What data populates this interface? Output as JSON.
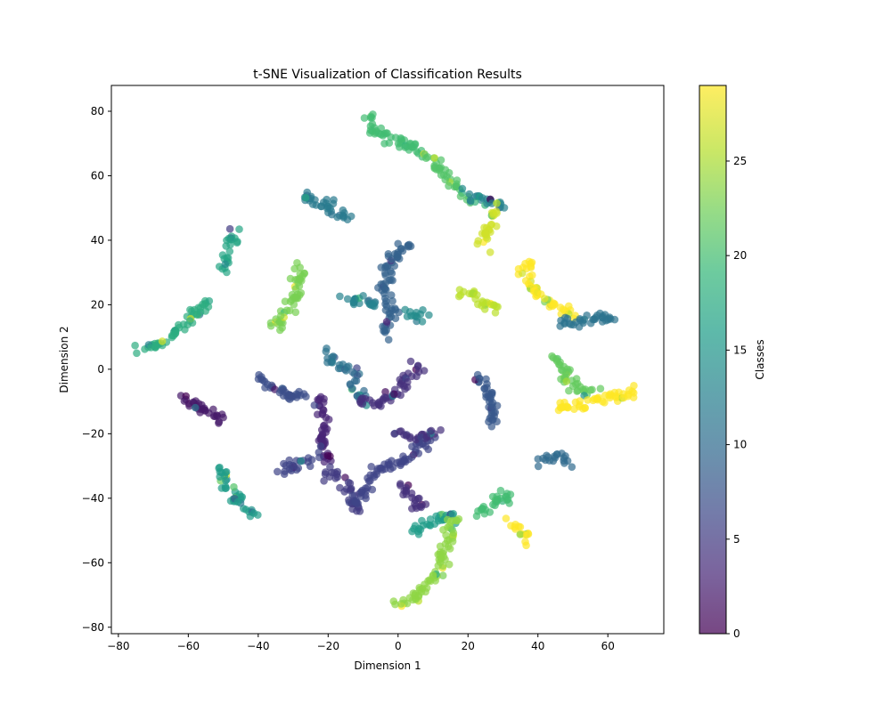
{
  "chart_data": {
    "type": "scatter",
    "title": "t-SNE Visualization of Classification Results",
    "xlabel": "Dimension 1",
    "ylabel": "Dimension 2",
    "xlim": [
      -82,
      76
    ],
    "ylim": [
      -82,
      88
    ],
    "xticks": [
      -80,
      -60,
      -40,
      -20,
      0,
      20,
      40,
      60
    ],
    "yticks": [
      -80,
      -60,
      -40,
      -20,
      0,
      20,
      40,
      60,
      80
    ],
    "grid": false,
    "colormap": "viridis",
    "point_alpha": 0.7,
    "colorbar": {
      "label": "Classes",
      "range": [
        0,
        29
      ],
      "ticks": [
        0,
        5,
        10,
        15,
        20,
        25
      ]
    },
    "clusters": [
      {
        "class": 2,
        "path": [
          [
            -62,
            -8
          ],
          [
            -58,
            -11
          ],
          [
            -54,
            -14
          ],
          [
            -50,
            -15
          ]
        ]
      },
      {
        "class": 16,
        "path": [
          [
            -51,
            -30
          ],
          [
            -49,
            -36
          ],
          [
            -46,
            -41
          ],
          [
            -42,
            -45
          ]
        ]
      },
      {
        "class": 18,
        "path": [
          [
            -74,
            6
          ],
          [
            -68,
            8
          ],
          [
            -62,
            13
          ],
          [
            -58,
            18
          ],
          [
            -54,
            21
          ]
        ]
      },
      {
        "class": 17,
        "path": [
          [
            -50,
            31
          ],
          [
            -49,
            36
          ],
          [
            -47,
            42
          ]
        ]
      },
      {
        "class": 23,
        "path": [
          [
            -37,
            12
          ],
          [
            -33,
            16
          ],
          [
            -29,
            23
          ],
          [
            -28,
            32
          ]
        ]
      },
      {
        "class": 7,
        "path": [
          [
            -40,
            -3
          ],
          [
            -36,
            -6
          ],
          [
            -30,
            -9
          ],
          [
            -26,
            -8
          ]
        ]
      },
      {
        "class": 3,
        "path": [
          [
            -22,
            -9
          ],
          [
            -21,
            -16
          ],
          [
            -22,
            -23
          ],
          [
            -20,
            -30
          ]
        ]
      },
      {
        "class": 6,
        "path": [
          [
            -34,
            -32
          ],
          [
            -28,
            -29
          ],
          [
            -24,
            -28
          ]
        ]
      },
      {
        "class": 5,
        "path": [
          [
            -20,
            -32
          ],
          [
            -16,
            -35
          ],
          [
            -13,
            -39
          ],
          [
            -12,
            -44
          ]
        ]
      },
      {
        "class": 6,
        "path": [
          [
            -12,
            -42
          ],
          [
            -8,
            -34
          ],
          [
            -4,
            -30
          ],
          [
            2,
            -28
          ],
          [
            6,
            -24
          ],
          [
            10,
            -20
          ]
        ]
      },
      {
        "class": 11,
        "path": [
          [
            -20,
            5
          ],
          [
            -18,
            2
          ],
          [
            -15,
            0
          ],
          [
            -12,
            -1
          ]
        ]
      },
      {
        "class": 10,
        "path": [
          [
            -13,
            -4
          ],
          [
            -12,
            -7
          ],
          [
            -10,
            -9
          ]
        ]
      },
      {
        "class": 4,
        "path": [
          [
            -12,
            -10
          ],
          [
            -6,
            -11
          ],
          [
            -2,
            -8
          ],
          [
            2,
            -4
          ],
          [
            6,
            1
          ]
        ]
      },
      {
        "class": 4,
        "path": [
          [
            0,
            -20
          ],
          [
            6,
            -21
          ],
          [
            10,
            -20
          ]
        ]
      },
      {
        "class": 9,
        "path": [
          [
            -4,
            10
          ],
          [
            -2,
            18
          ],
          [
            -4,
            26
          ],
          [
            -2,
            34
          ],
          [
            2,
            38
          ],
          [
            4,
            40
          ]
        ]
      },
      {
        "class": 13,
        "path": [
          [
            -16,
            22
          ],
          [
            -10,
            21
          ],
          [
            -6,
            19
          ]
        ]
      },
      {
        "class": 14,
        "path": [
          [
            2,
            17
          ],
          [
            8,
            17
          ]
        ]
      },
      {
        "class": 12,
        "path": [
          [
            -28,
            54
          ],
          [
            -22,
            52
          ],
          [
            -18,
            49
          ],
          [
            -14,
            46
          ]
        ]
      },
      {
        "class": 20,
        "path": [
          [
            -8,
            79
          ],
          [
            -7,
            74
          ],
          [
            -4,
            72
          ],
          [
            2,
            70
          ],
          [
            8,
            67
          ]
        ]
      },
      {
        "class": 21,
        "path": [
          [
            8,
            66
          ],
          [
            12,
            62
          ],
          [
            16,
            57
          ],
          [
            20,
            54
          ]
        ]
      },
      {
        "class": 13,
        "path": [
          [
            20,
            54
          ],
          [
            24,
            53
          ],
          [
            28,
            52
          ],
          [
            30,
            51
          ]
        ]
      },
      {
        "class": 27,
        "path": [
          [
            29,
            50
          ],
          [
            27,
            46
          ],
          [
            25,
            42
          ],
          [
            23,
            38
          ]
        ]
      },
      {
        "class": 26,
        "path": [
          [
            18,
            25
          ],
          [
            22,
            22
          ],
          [
            26,
            20
          ],
          [
            28,
            19
          ]
        ]
      },
      {
        "class": 8,
        "path": [
          [
            22,
            -2
          ],
          [
            25,
            -5
          ],
          [
            27,
            -10
          ],
          [
            27,
            -18
          ]
        ]
      },
      {
        "class": 29,
        "path": [
          [
            38,
            34
          ],
          [
            36,
            30
          ],
          [
            39,
            25
          ],
          [
            44,
            20
          ],
          [
            50,
            17
          ]
        ]
      },
      {
        "class": 11,
        "path": [
          [
            46,
            14
          ],
          [
            52,
            15
          ],
          [
            58,
            16
          ],
          [
            62,
            16
          ]
        ]
      },
      {
        "class": 22,
        "path": [
          [
            45,
            5
          ],
          [
            47,
            0
          ],
          [
            49,
            -4
          ],
          [
            52,
            -6
          ],
          [
            56,
            -7
          ]
        ]
      },
      {
        "class": 29,
        "path": [
          [
            46,
            -12
          ],
          [
            52,
            -11
          ],
          [
            58,
            -9
          ],
          [
            64,
            -8
          ],
          [
            68,
            -7
          ]
        ]
      },
      {
        "class": 10,
        "path": [
          [
            41,
            -28
          ],
          [
            45,
            -27
          ],
          [
            49,
            -29
          ]
        ]
      },
      {
        "class": 4,
        "path": [
          [
            1,
            -36
          ],
          [
            4,
            -40
          ],
          [
            7,
            -44
          ]
        ]
      },
      {
        "class": 16,
        "path": [
          [
            4,
            -50
          ],
          [
            8,
            -48
          ],
          [
            12,
            -46
          ],
          [
            16,
            -45
          ]
        ]
      },
      {
        "class": 20,
        "path": [
          [
            23,
            -44
          ],
          [
            28,
            -41
          ],
          [
            34,
            -38
          ]
        ]
      },
      {
        "class": 29,
        "path": [
          [
            33,
            -48
          ],
          [
            35,
            -51
          ],
          [
            38,
            -53
          ]
        ]
      },
      {
        "class": 24,
        "path": [
          [
            16,
            -46
          ],
          [
            14,
            -55
          ],
          [
            11,
            -64
          ],
          [
            6,
            -70
          ],
          [
            0,
            -73
          ]
        ]
      }
    ]
  }
}
